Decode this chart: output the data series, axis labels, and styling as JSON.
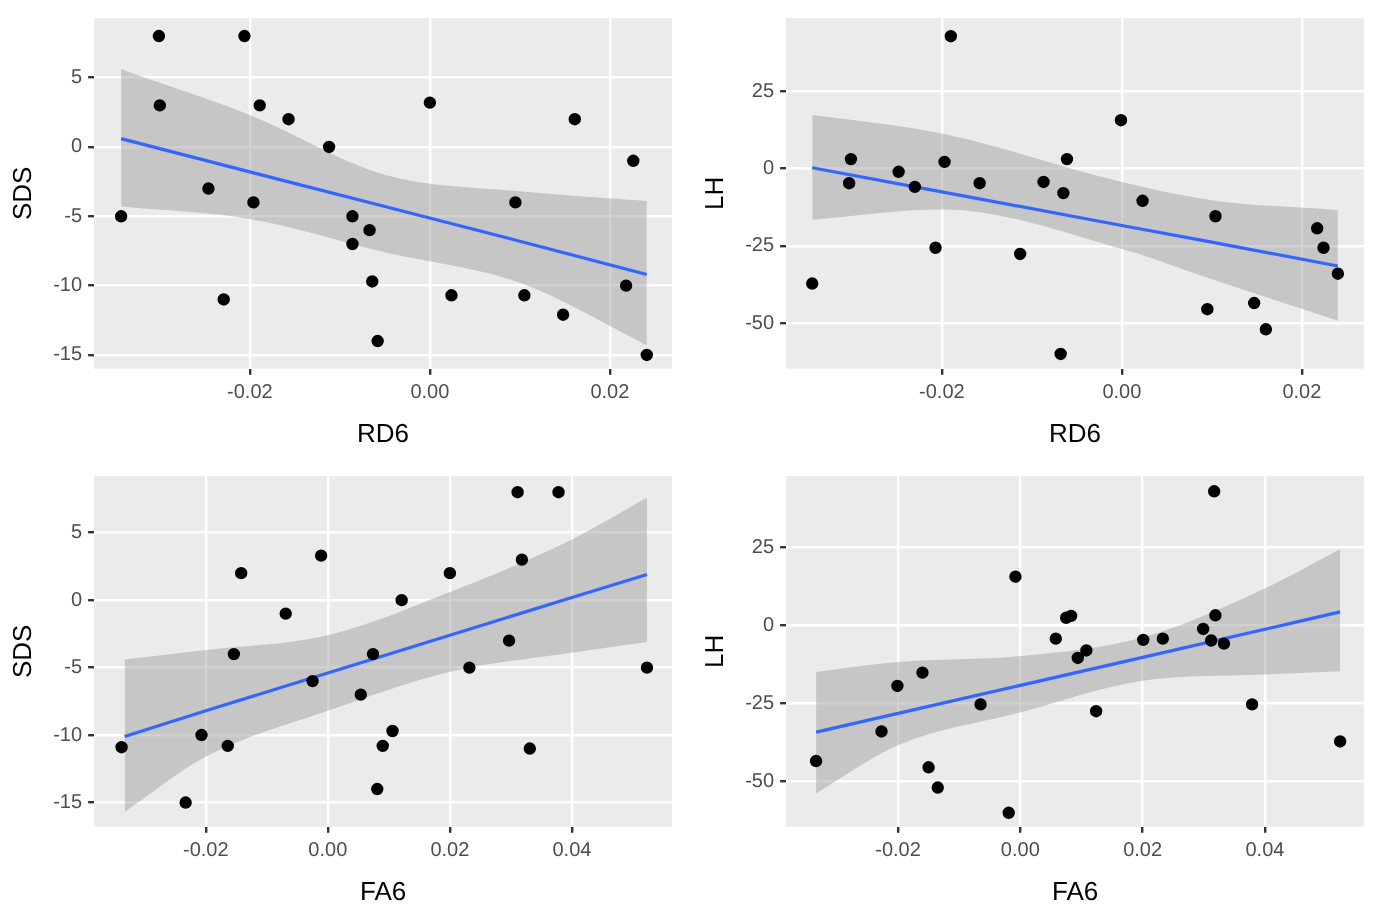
{
  "chart_data": [
    {
      "type": "scatter",
      "xlabel": "RD6",
      "ylabel": "SDS",
      "xlim": [
        -0.0373,
        0.0269
      ],
      "ylim": [
        -16,
        9.3
      ],
      "xticks": [
        {
          "value": -0.02,
          "label": "-0.02"
        },
        {
          "value": 0,
          "label": "0.00"
        },
        {
          "value": 0.02,
          "label": "0.02"
        }
      ],
      "yticks": [
        -15,
        -10,
        -5,
        0,
        5
      ],
      "grid": true,
      "legend": false,
      "series": [
        {
          "marker": "circle",
          "color": "#000000",
          "x": [
            -0.0343,
            -0.0301,
            -0.03,
            -0.0246,
            -0.0229,
            -0.0206,
            -0.0196,
            -0.0189,
            -0.0157,
            -0.0112,
            -0.0086,
            -0.0086,
            -0.0067,
            -0.0064,
            -0.0058,
            0,
            0.0024,
            0.0095,
            0.0105,
            0.0148,
            0.0161,
            0.0218,
            0.0226,
            0.0241
          ],
          "values": [
            -5,
            8,
            3,
            -3,
            -11,
            8,
            -4,
            3,
            2,
            0,
            -5,
            -7,
            -6,
            -9.7,
            -14,
            3.2,
            -10.7,
            -4,
            -10.7,
            -12.1,
            2,
            -10,
            -1,
            -15
          ]
        },
        {
          "type": "line",
          "marker": "none",
          "color": "#3366ff",
          "x": [
            -0.0343,
            -0.02,
            -0.005,
            0.01,
            0.0241
          ],
          "values": [
            0.6,
            -1.8,
            -4.3,
            -6.8,
            -9.2
          ],
          "lower": [
            -4.3,
            -5.2,
            -7.6,
            -9.8,
            -14.3
          ],
          "upper": [
            5.6,
            2.3,
            -2.0,
            -3.2,
            -3.9
          ]
        }
      ]
    },
    {
      "type": "scatter",
      "xlabel": "RD6",
      "ylabel": "LH",
      "xlim": [
        -0.0373,
        0.0269
      ],
      "ylim": [
        -64.8,
        48.8
      ],
      "xticks": [
        {
          "value": -0.02,
          "label": "-0.02"
        },
        {
          "value": 0,
          "label": "0.00"
        },
        {
          "value": 0.02,
          "label": "0.02"
        }
      ],
      "yticks": [
        -50,
        -25,
        0,
        25
      ],
      "grid": true,
      "legend": false,
      "series": [
        {
          "marker": "circle",
          "color": "#000000",
          "x": [
            -0.0344,
            -0.0301,
            -0.0303,
            -0.0248,
            -0.023,
            -0.0207,
            -0.0197,
            -0.019,
            -0.0158,
            -0.0113,
            -0.0087,
            -0.0065,
            -0.0061,
            -0.0068,
            -0.0001,
            0.0023,
            0.0095,
            0.0104,
            0.0147,
            0.016,
            0.0217,
            0.0224,
            0.024
          ],
          "values": [
            -37.2,
            3.1,
            -4.7,
            -1,
            -5.9,
            -25.6,
            2.2,
            42.9,
            -4.7,
            -27.6,
            -4.3,
            -7.9,
            3.1,
            -60,
            15.7,
            -10.4,
            -45.5,
            -15.4,
            -43.5,
            -52,
            -19.3,
            -25.6,
            -34
          ]
        },
        {
          "type": "line",
          "marker": "none",
          "color": "#3366ff",
          "x": [
            -0.0344,
            -0.02,
            0,
            0.01,
            0.024
          ],
          "values": [
            0.3,
            -7.5,
            -18.4,
            -23.8,
            -31.5
          ],
          "lower": [
            -16.5,
            -13.2,
            -26,
            -35.8,
            -49.2
          ],
          "upper": [
            17.5,
            11.4,
            -4.3,
            -10.2,
            -13.4
          ]
        }
      ]
    },
    {
      "type": "scatter",
      "xlabel": "FA6",
      "ylabel": "SDS",
      "xlim": [
        -0.0383,
        0.0564
      ],
      "ylim": [
        -16.8,
        9.2
      ],
      "xticks": [
        {
          "value": -0.02,
          "label": "-0.02"
        },
        {
          "value": 0,
          "label": "0.00"
        },
        {
          "value": 0.02,
          "label": "0.02"
        },
        {
          "value": 0.04,
          "label": "0.04"
        }
      ],
      "yticks": [
        -15,
        -10,
        -5,
        0,
        5
      ],
      "grid": true,
      "legend": false,
      "series": [
        {
          "marker": "circle",
          "color": "#000000",
          "x": [
            -0.0338,
            -0.0233,
            -0.0207,
            -0.0164,
            -0.0154,
            -0.0142,
            -0.0069,
            -0.0025,
            -0.0011,
            0.0054,
            0.0074,
            0.0081,
            0.009,
            0.0106,
            0.0121,
            0.02,
            0.0232,
            0.0297,
            0.0311,
            0.0318,
            0.0331,
            0.0378,
            0.0523
          ],
          "values": [
            -10.9,
            -15,
            -10,
            -10.8,
            -4,
            2,
            -1,
            -6,
            3.3,
            -7,
            -4,
            -14,
            -10.8,
            -9.7,
            0,
            2,
            -5,
            -3,
            8,
            3,
            -11,
            8,
            -5
          ]
        },
        {
          "type": "line",
          "marker": "none",
          "color": "#3366ff",
          "x": [
            -0.0333,
            -0.02,
            0,
            0.02,
            0.04,
            0.0523
          ],
          "values": [
            -10.1,
            -8.2,
            -5.4,
            -2.6,
            0.2,
            1.9
          ],
          "lower": [
            -15.7,
            -11.6,
            -8.2,
            -5.3,
            -3.9,
            -3.1
          ],
          "upper": [
            -4.4,
            -3.7,
            -2.6,
            0.6,
            4.5,
            7.6
          ]
        }
      ]
    },
    {
      "type": "scatter",
      "xlabel": "FA6",
      "ylabel": "LH",
      "xlim": [
        -0.0383,
        0.0562
      ],
      "ylim": [
        -64.7,
        47.9
      ],
      "xticks": [
        {
          "value": -0.02,
          "label": "-0.02"
        },
        {
          "value": 0,
          "label": "0.00"
        },
        {
          "value": 0.02,
          "label": "0.02"
        },
        {
          "value": 0.04,
          "label": "0.04"
        }
      ],
      "yticks": [
        -50,
        -25,
        0,
        25
      ],
      "grid": true,
      "legend": false,
      "series": [
        {
          "marker": "circle",
          "color": "#000000",
          "x": [
            -0.0334,
            -0.0227,
            -0.0201,
            -0.016,
            -0.015,
            -0.0135,
            -0.0065,
            -0.0019,
            -0.0008,
            0.0058,
            0.0075,
            0.0083,
            0.0094,
            0.0108,
            0.0124,
            0.0201,
            0.0233,
            0.0299,
            0.0312,
            0.0319,
            0.0317,
            0.0333,
            0.0379,
            0.0523
          ],
          "values": [
            -43.6,
            -34.1,
            -19.5,
            -15.2,
            -45.6,
            -52.1,
            -25.4,
            -60.2,
            15.6,
            -4.3,
            2.4,
            3,
            -10.5,
            -8.1,
            -27.6,
            -4.7,
            -4.3,
            -1.2,
            -4.9,
            3.2,
            43,
            -5.9,
            -25.4,
            -37.3
          ]
        },
        {
          "type": "line",
          "marker": "none",
          "color": "#3366ff",
          "x": [
            -0.0334,
            -0.02,
            0,
            0.02,
            0.04,
            0.0523
          ],
          "values": [
            -34.3,
            -28.3,
            -19.3,
            -10.3,
            -1.3,
            4.3
          ],
          "lower": [
            -54,
            -38.5,
            -28,
            -17.8,
            -15.8,
            -14.8
          ],
          "upper": [
            -15,
            -11.8,
            -9.9,
            -3.9,
            11.8,
            24.5
          ]
        }
      ]
    }
  ]
}
